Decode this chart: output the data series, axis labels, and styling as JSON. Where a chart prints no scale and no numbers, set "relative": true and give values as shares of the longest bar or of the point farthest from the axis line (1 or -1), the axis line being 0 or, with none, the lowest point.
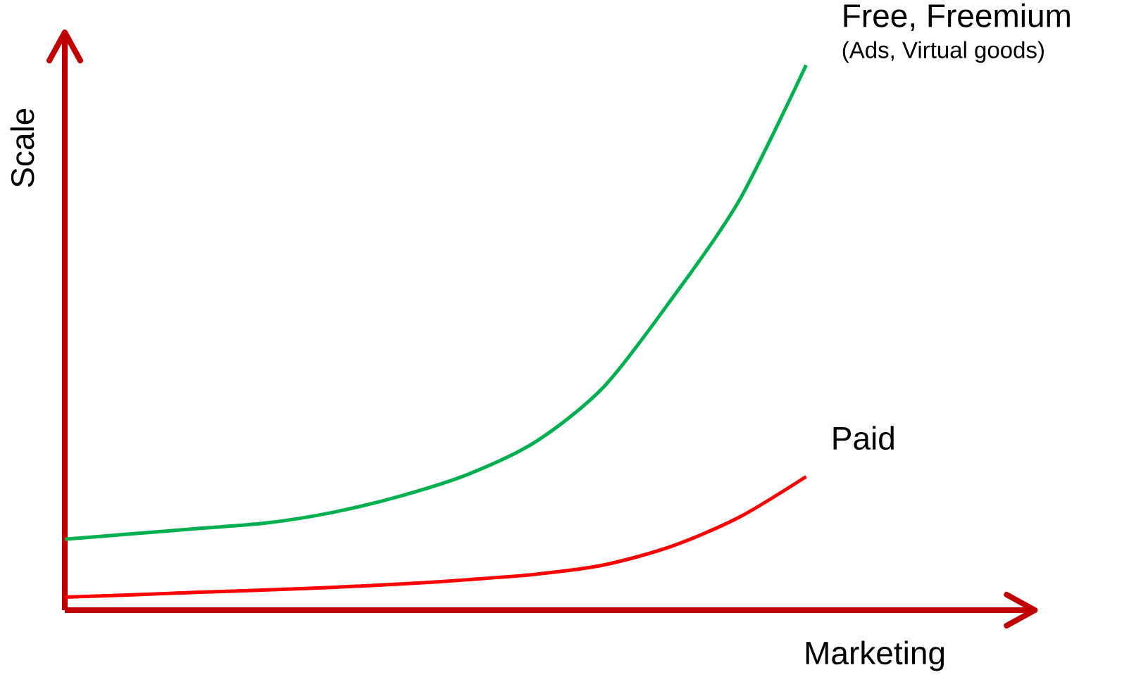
{
  "chart_data": {
    "type": "line",
    "relative": true,
    "xlabel": "Marketing",
    "ylabel": "Scale",
    "categories": [
      null,
      null,
      null,
      null,
      null,
      null,
      null,
      null,
      null,
      null,
      null,
      null
    ],
    "series": [
      {
        "name": "Free, Freemium",
        "color": "#00b050",
        "values": [
          0.13,
          0.14,
          0.15,
          0.16,
          0.18,
          0.21,
          0.25,
          0.31,
          0.41,
          0.57,
          0.75,
          1
        ]
      },
      {
        "name": "Paid",
        "color": "#ff0000",
        "values": [
          0.024,
          0.028,
          0.033,
          0.037,
          0.042,
          0.048,
          0.056,
          0.066,
          0.083,
          0.117,
          0.17,
          0.245
        ]
      }
    ],
    "annotations": [
      "(Ads, Virtual goods)"
    ]
  }
}
